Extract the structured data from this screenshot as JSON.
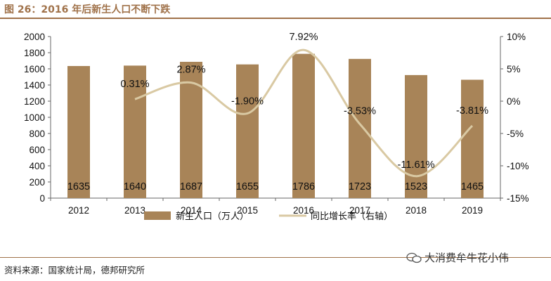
{
  "figure": {
    "title": "图 26：2016 年后新生人口不断下跌",
    "source": "资料来源：国家统计局，德邦研究所",
    "watermark": "大消费牟牛花小伟"
  },
  "chart_data": {
    "type": "bar+line",
    "categories": [
      "2012",
      "2013",
      "2014",
      "2015",
      "2016",
      "2017",
      "2018",
      "2019"
    ],
    "series": [
      {
        "name": "新生人口（万人）",
        "type": "bar",
        "axis": "left",
        "values": [
          1635,
          1640,
          1687,
          1655,
          1786,
          1723,
          1523,
          1465
        ],
        "color": "#a88458"
      },
      {
        "name": "同比增长率（右轴）",
        "type": "line",
        "axis": "right",
        "values": [
          null,
          0.31,
          2.87,
          -1.9,
          7.92,
          -3.53,
          -11.61,
          -3.81
        ],
        "labels": [
          "",
          "0.31%",
          "2.87%",
          "-1.90%",
          "7.92%",
          "-3.53%",
          "-11.61%",
          "-3.81%"
        ],
        "color": "#d9c9a3"
      }
    ],
    "ylim_left": [
      0,
      2000
    ],
    "yticks_left": [
      "0",
      "200",
      "400",
      "600",
      "800",
      "1000",
      "1200",
      "1400",
      "1600",
      "1800",
      "2000"
    ],
    "ylim_right": [
      -15,
      10
    ],
    "yticks_right": [
      "-15%",
      "-10%",
      "-5%",
      "0%",
      "5%",
      "10%"
    ],
    "yticks_right_values": [
      -15,
      -10,
      -5,
      0,
      5,
      10
    ],
    "legend_position": "bottom-center"
  }
}
